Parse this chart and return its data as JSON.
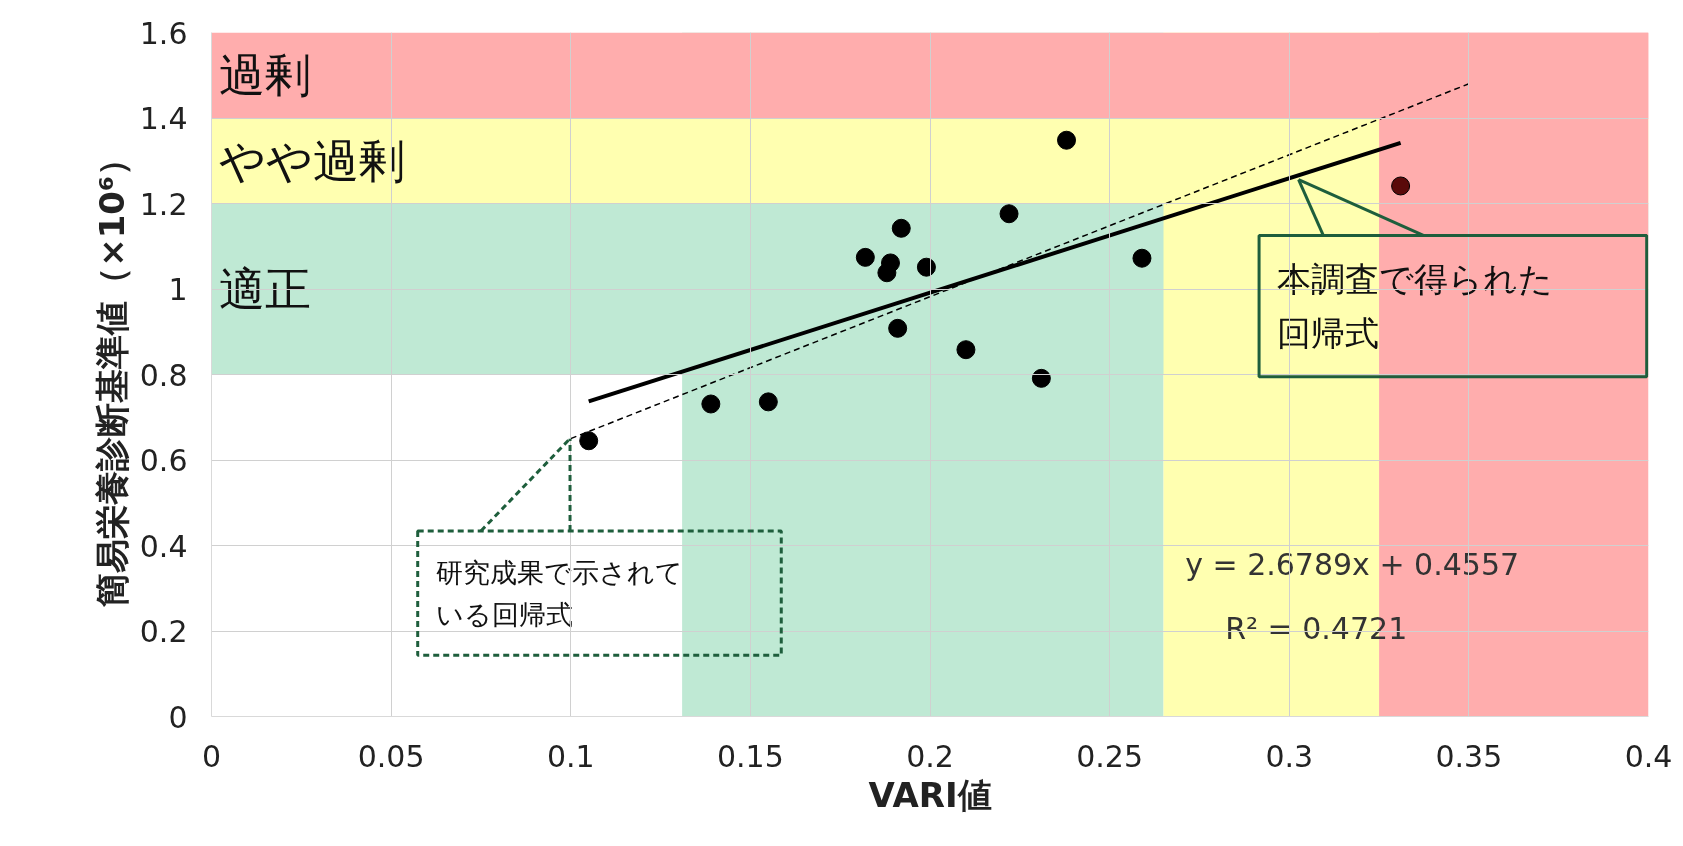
{
  "chart_data": {
    "type": "scatter",
    "xlabel": "VARI値",
    "ylabel": "簡易栄養診断基準値（×10⁶）",
    "xlim": [
      0,
      0.4
    ],
    "xticks": [
      0,
      0.05,
      0.1,
      0.15,
      0.2,
      0.25,
      0.3,
      0.35,
      0.4
    ],
    "ylim": [
      0,
      1.6
    ],
    "yticks": [
      0,
      0.2,
      0.4,
      0.6,
      0.8,
      1,
      1.2,
      1.4,
      1.6
    ],
    "grid": true,
    "marker": "circle",
    "bands": [
      {
        "axis": "x",
        "from": 0.131,
        "to": 0.265,
        "color": "#bfe9d4"
      },
      {
        "axis": "y",
        "from": 0.8,
        "to": 1.2,
        "label": "適正",
        "color": "#bfe9d4"
      },
      {
        "axis": "x",
        "from": 0.265,
        "to": 0.325,
        "color": "#ffffb0"
      },
      {
        "axis": "y",
        "from": 1.2,
        "to": 1.4,
        "label": "やや過剰",
        "color": "#ffffb0"
      },
      {
        "axis": "x",
        "from": 0.325,
        "to": 0.4,
        "color": "#ffadad"
      },
      {
        "axis": "y",
        "from": 1.4,
        "to": 1.6,
        "label": "過剰",
        "color": "#ffadad"
      }
    ],
    "series": [
      {
        "x": [
          0.105,
          0.139,
          0.155,
          0.182,
          0.188,
          0.189,
          0.192,
          0.191,
          0.199,
          0.21,
          0.222,
          0.231,
          0.238,
          0.259,
          0.331
        ],
        "values": [
          0.645,
          0.731,
          0.736,
          1.074,
          1.038,
          1.061,
          1.142,
          0.908,
          1.051,
          0.858,
          1.176,
          0.791,
          1.348,
          1.072,
          1.241
        ],
        "colors": [
          "#000000",
          "#000000",
          "#000000",
          "#000000",
          "#000000",
          "#000000",
          "#000000",
          "#000000",
          "#000000",
          "#000000",
          "#000000",
          "#000000",
          "#000000",
          "#000000",
          "#5a0a0a"
        ]
      },
      {
        "type": "line",
        "x": [
          0.105,
          0.331
        ],
        "values": [
          0.737,
          1.342
        ],
        "color": "#000000",
        "line_style": "solid",
        "marker": "none"
      },
      {
        "type": "line",
        "x": [
          0.1,
          0.35
        ],
        "values": [
          0.65,
          1.48
        ],
        "color": "#000000",
        "line_style": "dashed",
        "marker": "none"
      }
    ],
    "annotations": [
      {
        "text": "本調査で得られた回帰式",
        "x": 0.3026,
        "y": 1.256
      },
      {
        "text": "研究成果で示されている回帰式",
        "x": 0.0998,
        "y": 0.65
      },
      "y = 2.6789x + 0.4557",
      "R² = 0.4721"
    ]
  }
}
